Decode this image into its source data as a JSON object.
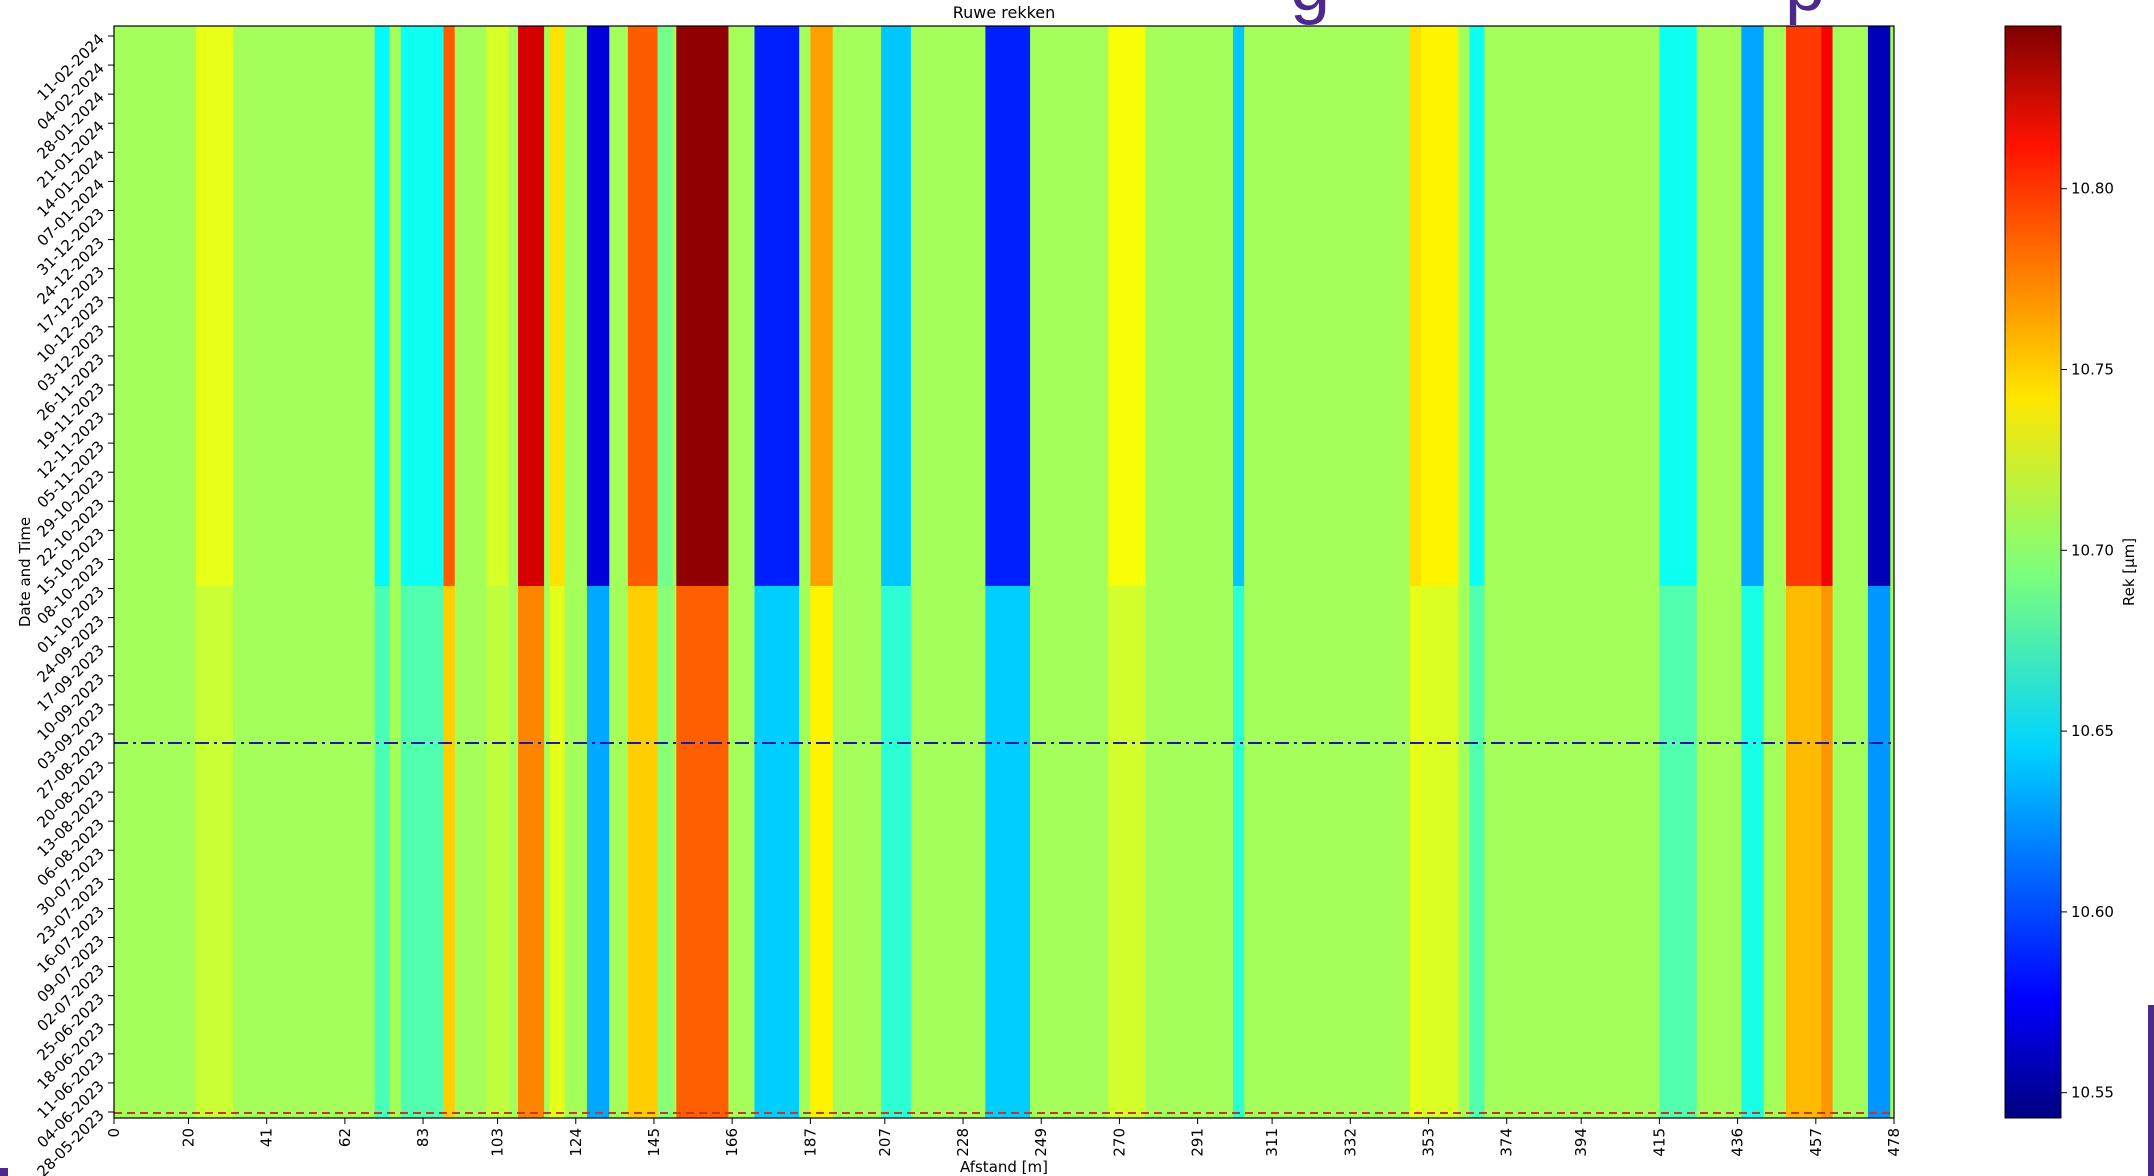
{
  "chart_data": {
    "type": "heatmap",
    "title": "Ruwe rekken",
    "xlabel": "Afstand [m]",
    "ylabel": "Date and Time",
    "colorbar_label": "Rek [μm]",
    "colormap": "jet",
    "x_ticks": [
      "0",
      "20",
      "41",
      "62",
      "83",
      "103",
      "124",
      "145",
      "166",
      "187",
      "207",
      "228",
      "249",
      "270",
      "291",
      "311",
      "332",
      "353",
      "374",
      "394",
      "415",
      "436",
      "457",
      "478"
    ],
    "x_range": [
      0,
      478
    ],
    "y_ticks": [
      "11-02-2024",
      "04-02-2024",
      "28-01-2024",
      "21-01-2024",
      "14-01-2024",
      "07-01-2024",
      "31-12-2023",
      "24-12-2023",
      "17-12-2023",
      "10-12-2023",
      "03-12-2023",
      "26-11-2023",
      "19-11-2023",
      "12-11-2023",
      "05-11-2023",
      "29-10-2023",
      "22-10-2023",
      "15-10-2023",
      "08-10-2023",
      "01-10-2023",
      "24-09-2023",
      "17-09-2023",
      "10-09-2023",
      "03-09-2023",
      "27-08-2023",
      "20-08-2023",
      "13-08-2023",
      "06-08-2023",
      "30-07-2023",
      "23-07-2023",
      "16-07-2023",
      "09-07-2023",
      "02-07-2023",
      "25-06-2023",
      "18-06-2023",
      "11-06-2023",
      "04-06-2023",
      "28-05-2023"
    ],
    "colorbar_ticks": [
      "10.80",
      "10.75",
      "10.70",
      "10.65",
      "10.60",
      "10.55"
    ],
    "colorbar_range": [
      10.543,
      10.845
    ],
    "baseline_value": 10.705,
    "vertical_bands": [
      {
        "x": 27,
        "width": 10,
        "value": 10.725
      },
      {
        "x": 72,
        "width": 4,
        "value": 10.655
      },
      {
        "x": 83,
        "width": 12,
        "value": 10.66
      },
      {
        "x": 90,
        "width": 3,
        "value": 10.78
      },
      {
        "x": 103,
        "width": 6,
        "value": 10.72
      },
      {
        "x": 112,
        "width": 7,
        "value": 10.82
      },
      {
        "x": 119,
        "width": 4,
        "value": 10.74
      },
      {
        "x": 130,
        "width": 6,
        "value": 10.57
      },
      {
        "x": 142,
        "width": 8,
        "value": 10.78
      },
      {
        "x": 148,
        "width": 4,
        "value": 10.69
      },
      {
        "x": 158,
        "width": 14,
        "value": 10.84
      },
      {
        "x": 178,
        "width": 12,
        "value": 10.59
      },
      {
        "x": 190,
        "width": 6,
        "value": 10.76
      },
      {
        "x": 210,
        "width": 8,
        "value": 10.64
      },
      {
        "x": 240,
        "width": 12,
        "value": 10.59
      },
      {
        "x": 272,
        "width": 10,
        "value": 10.73
      },
      {
        "x": 302,
        "width": 3,
        "value": 10.64
      },
      {
        "x": 350,
        "width": 4,
        "value": 10.74
      },
      {
        "x": 356,
        "width": 10,
        "value": 10.735
      },
      {
        "x": 366,
        "width": 4,
        "value": 10.66
      },
      {
        "x": 420,
        "width": 10,
        "value": 10.66
      },
      {
        "x": 440,
        "width": 6,
        "value": 10.63
      },
      {
        "x": 454,
        "width": 10,
        "value": 10.79
      },
      {
        "x": 460,
        "width": 3,
        "value": 10.81
      },
      {
        "x": 474,
        "width": 6,
        "value": 10.56
      }
    ],
    "reference_lines": [
      {
        "date": "30-08-2023",
        "color": "#1a1aa6",
        "style": "dash-dot"
      },
      {
        "date": "28-05-2023",
        "color": "#c0392b",
        "style": "dashed"
      }
    ]
  },
  "decor": {
    "header_fragment": "g",
    "header_fragment_2": "p",
    "accent_color": "#4b2a8c"
  }
}
